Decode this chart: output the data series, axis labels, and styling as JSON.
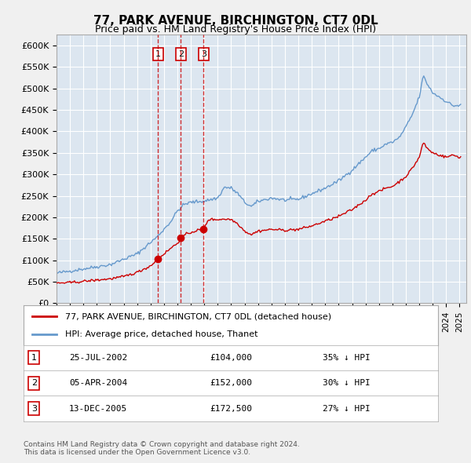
{
  "title": "77, PARK AVENUE, BIRCHINGTON, CT7 0DL",
  "subtitle": "Price paid vs. HM Land Registry's House Price Index (HPI)",
  "legend_property": "77, PARK AVENUE, BIRCHINGTON, CT7 0DL (detached house)",
  "legend_hpi": "HPI: Average price, detached house, Thanet",
  "property_color": "#cc0000",
  "hpi_color": "#6699cc",
  "background_color": "#dce6f0",
  "plot_bg_color": "#dce6f0",
  "grid_color": "#ffffff",
  "vline_color": "#cc0000",
  "transactions": [
    {
      "num": 1,
      "date": "25-JUL-2002",
      "price": 104000,
      "hpi_pct": "35% ↓ HPI",
      "year": 2002.56
    },
    {
      "num": 2,
      "date": "05-APR-2004",
      "price": 152000,
      "hpi_pct": "30% ↓ HPI",
      "year": 2004.26
    },
    {
      "num": 3,
      "date": "13-DEC-2005",
      "price": 172500,
      "hpi_pct": "27% ↓ HPI",
      "year": 2005.95
    }
  ],
  "ylim": [
    0,
    625000
  ],
  "yticks": [
    0,
    50000,
    100000,
    150000,
    200000,
    250000,
    300000,
    350000,
    400000,
    450000,
    500000,
    550000,
    600000
  ],
  "ytick_labels": [
    "£0",
    "£50K",
    "£100K",
    "£150K",
    "£200K",
    "£250K",
    "£300K",
    "£350K",
    "£400K",
    "£450K",
    "£500K",
    "£550K",
    "£600K"
  ],
  "xlim_start": 1995,
  "xlim_end": 2025.5,
  "footer": "Contains HM Land Registry data © Crown copyright and database right 2024.\nThis data is licensed under the Open Government Licence v3.0."
}
